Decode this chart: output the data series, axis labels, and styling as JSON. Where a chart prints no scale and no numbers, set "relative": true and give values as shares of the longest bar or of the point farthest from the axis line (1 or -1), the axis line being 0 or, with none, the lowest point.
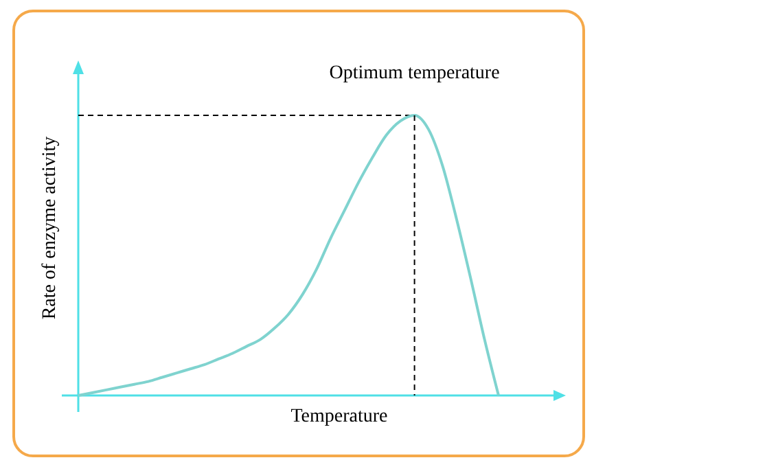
{
  "chart_data": {
    "type": "line",
    "relative": true,
    "xlabel": "Temperature",
    "ylabel": "Rate of enzyme activity",
    "categories": [
      null,
      null,
      null,
      null,
      null,
      null,
      null,
      null,
      null,
      null,
      null,
      null,
      null,
      null,
      null,
      null,
      null,
      null,
      null,
      null,
      null,
      null,
      null,
      null,
      null,
      null,
      null,
      null,
      null,
      null,
      null
    ],
    "series": [
      {
        "color": "#7fd3cf",
        "values": [
          0,
          0.01,
          0.02,
          0.03,
          0.04,
          0.05,
          0.065,
          0.08,
          0.095,
          0.11,
          0.13,
          0.15,
          0.175,
          0.2,
          0.24,
          0.29,
          0.36,
          0.45,
          0.56,
          0.66,
          0.76,
          0.85,
          0.93,
          0.98,
          1,
          0.95,
          0.82,
          0.63,
          0.42,
          0.2,
          0
        ]
      }
    ],
    "annotations": [
      {
        "text": "Optimum temperature",
        "y": 1
      }
    ],
    "ref_lines": [
      {
        "axis": "y",
        "value": 1,
        "color": "#000000",
        "line_style": "dashed"
      }
    ],
    "marker": "none",
    "line_style": "solid"
  }
}
